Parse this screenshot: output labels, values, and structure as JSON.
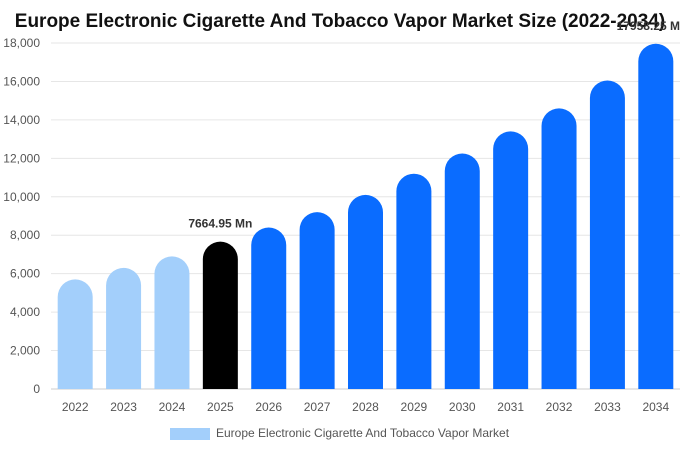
{
  "chart_data": {
    "type": "bar",
    "title": "Europe Electronic Cigarette And Tobacco Vapor Market Size (2022-2034)",
    "xlabel": "",
    "ylabel": "",
    "categories": [
      "2022",
      "2023",
      "2024",
      "2025",
      "2026",
      "2027",
      "2028",
      "2029",
      "2030",
      "2031",
      "2032",
      "2033",
      "2034"
    ],
    "series": [
      {
        "name": "Europe Electronic Cigarette And Tobacco Vapor Market",
        "values": [
          5700,
          6300,
          6900,
          7664.95,
          8400,
          9200,
          10100,
          11200,
          12250,
          13400,
          14600,
          16050,
          17958.25
        ]
      }
    ],
    "ylim": [
      0,
      18000
    ],
    "yticks": [
      0,
      2000,
      4000,
      6000,
      8000,
      10000,
      12000,
      14000,
      16000,
      18000
    ],
    "ytick_labels": [
      "0",
      "2,000",
      "4,000",
      "6,000",
      "8,000",
      "10,000",
      "12,000",
      "14,000",
      "16,000",
      "18,000"
    ],
    "data_labels": [
      {
        "index": 3,
        "text": "7664.95 Mn"
      },
      {
        "index": 12,
        "text": "17958.25 M"
      }
    ],
    "colors": {
      "historical": "#a3cffb",
      "base_year": "#000000",
      "forecast": "#0a6cff",
      "grid": "#e6e6e6",
      "axis": "#cccccc"
    },
    "historical_indices": [
      0,
      1,
      2
    ],
    "base_year_index": 3,
    "grid": true,
    "legend_position": "bottom"
  }
}
